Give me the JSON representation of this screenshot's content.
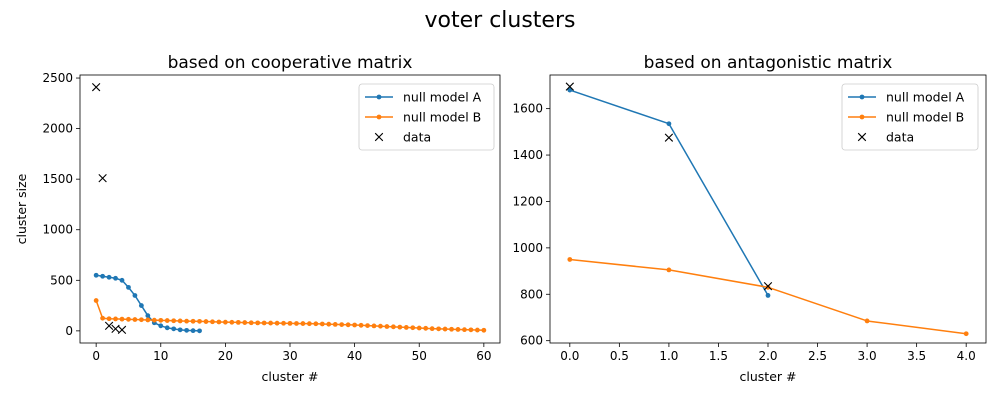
{
  "suptitle": "voter clusters",
  "chart_data": [
    {
      "type": "line",
      "title": "based on cooperative matrix",
      "xlabel": "cluster #",
      "ylabel": "cluster size",
      "xlim": [
        -2.5,
        62.5
      ],
      "ylim": [
        -120,
        2530
      ],
      "xticks": [
        0,
        10,
        20,
        30,
        40,
        50,
        60
      ],
      "yticks": [
        0,
        500,
        1000,
        1500,
        2000,
        2500
      ],
      "legend": "top-right",
      "series": [
        {
          "name": "null model A",
          "style": "line-dot",
          "color": "#1f77b4",
          "x": [
            0,
            1,
            2,
            3,
            4,
            5,
            6,
            7,
            8,
            9,
            10,
            11,
            12,
            13,
            14,
            15,
            16
          ],
          "y": [
            550,
            540,
            530,
            520,
            500,
            430,
            350,
            250,
            150,
            80,
            50,
            30,
            20,
            10,
            5,
            2,
            0
          ]
        },
        {
          "name": "null model B",
          "style": "line-dot",
          "color": "#ff7f0e",
          "x": [
            0,
            1,
            2,
            3,
            4,
            5,
            6,
            7,
            8,
            9,
            10,
            11,
            12,
            13,
            14,
            15,
            16,
            17,
            18,
            19,
            20,
            21,
            22,
            23,
            24,
            25,
            26,
            27,
            28,
            29,
            30,
            31,
            32,
            33,
            34,
            35,
            36,
            37,
            38,
            39,
            40,
            41,
            42,
            43,
            44,
            45,
            46,
            47,
            48,
            49,
            50,
            51,
            52,
            53,
            54,
            55,
            56,
            57,
            58,
            59,
            60
          ],
          "y": [
            300,
            125,
            120,
            118,
            116,
            114,
            112,
            110,
            108,
            106,
            104,
            102,
            100,
            98,
            96,
            95,
            94,
            92,
            90,
            88,
            86,
            85,
            84,
            82,
            80,
            79,
            78,
            77,
            76,
            75,
            74,
            73,
            72,
            71,
            70,
            68,
            66,
            64,
            62,
            60,
            58,
            55,
            52,
            49,
            46,
            43,
            40,
            37,
            34,
            31,
            28,
            25,
            22,
            20,
            18,
            16,
            14,
            12,
            10,
            8,
            6
          ]
        },
        {
          "name": "data",
          "style": "x",
          "color": "#000000",
          "x": [
            0,
            1,
            2,
            3,
            4
          ],
          "y": [
            2410,
            1510,
            50,
            20,
            10
          ]
        }
      ]
    },
    {
      "type": "line",
      "title": "based on antagonistic matrix",
      "xlabel": "cluster #",
      "ylabel": "",
      "xlim": [
        -0.2,
        4.2
      ],
      "ylim": [
        590,
        1745
      ],
      "xticks": [
        0.0,
        0.5,
        1.0,
        1.5,
        2.0,
        2.5,
        3.0,
        3.5,
        4.0
      ],
      "xtick_labels": [
        "0.0",
        "0.5",
        "1.0",
        "1.5",
        "2.0",
        "2.5",
        "3.0",
        "3.5",
        "4.0"
      ],
      "yticks": [
        600,
        800,
        1000,
        1200,
        1400,
        1600
      ],
      "legend": "top-right",
      "series": [
        {
          "name": "null model A",
          "style": "line-dot",
          "color": "#1f77b4",
          "x": [
            0,
            1,
            2
          ],
          "y": [
            1680,
            1535,
            795
          ]
        },
        {
          "name": "null model B",
          "style": "line-dot",
          "color": "#ff7f0e",
          "x": [
            0,
            1,
            2,
            3,
            4
          ],
          "y": [
            950,
            905,
            830,
            685,
            630
          ]
        },
        {
          "name": "data",
          "style": "x",
          "color": "#000000",
          "x": [
            0,
            1,
            2
          ],
          "y": [
            1695,
            1475,
            835
          ]
        }
      ]
    }
  ]
}
